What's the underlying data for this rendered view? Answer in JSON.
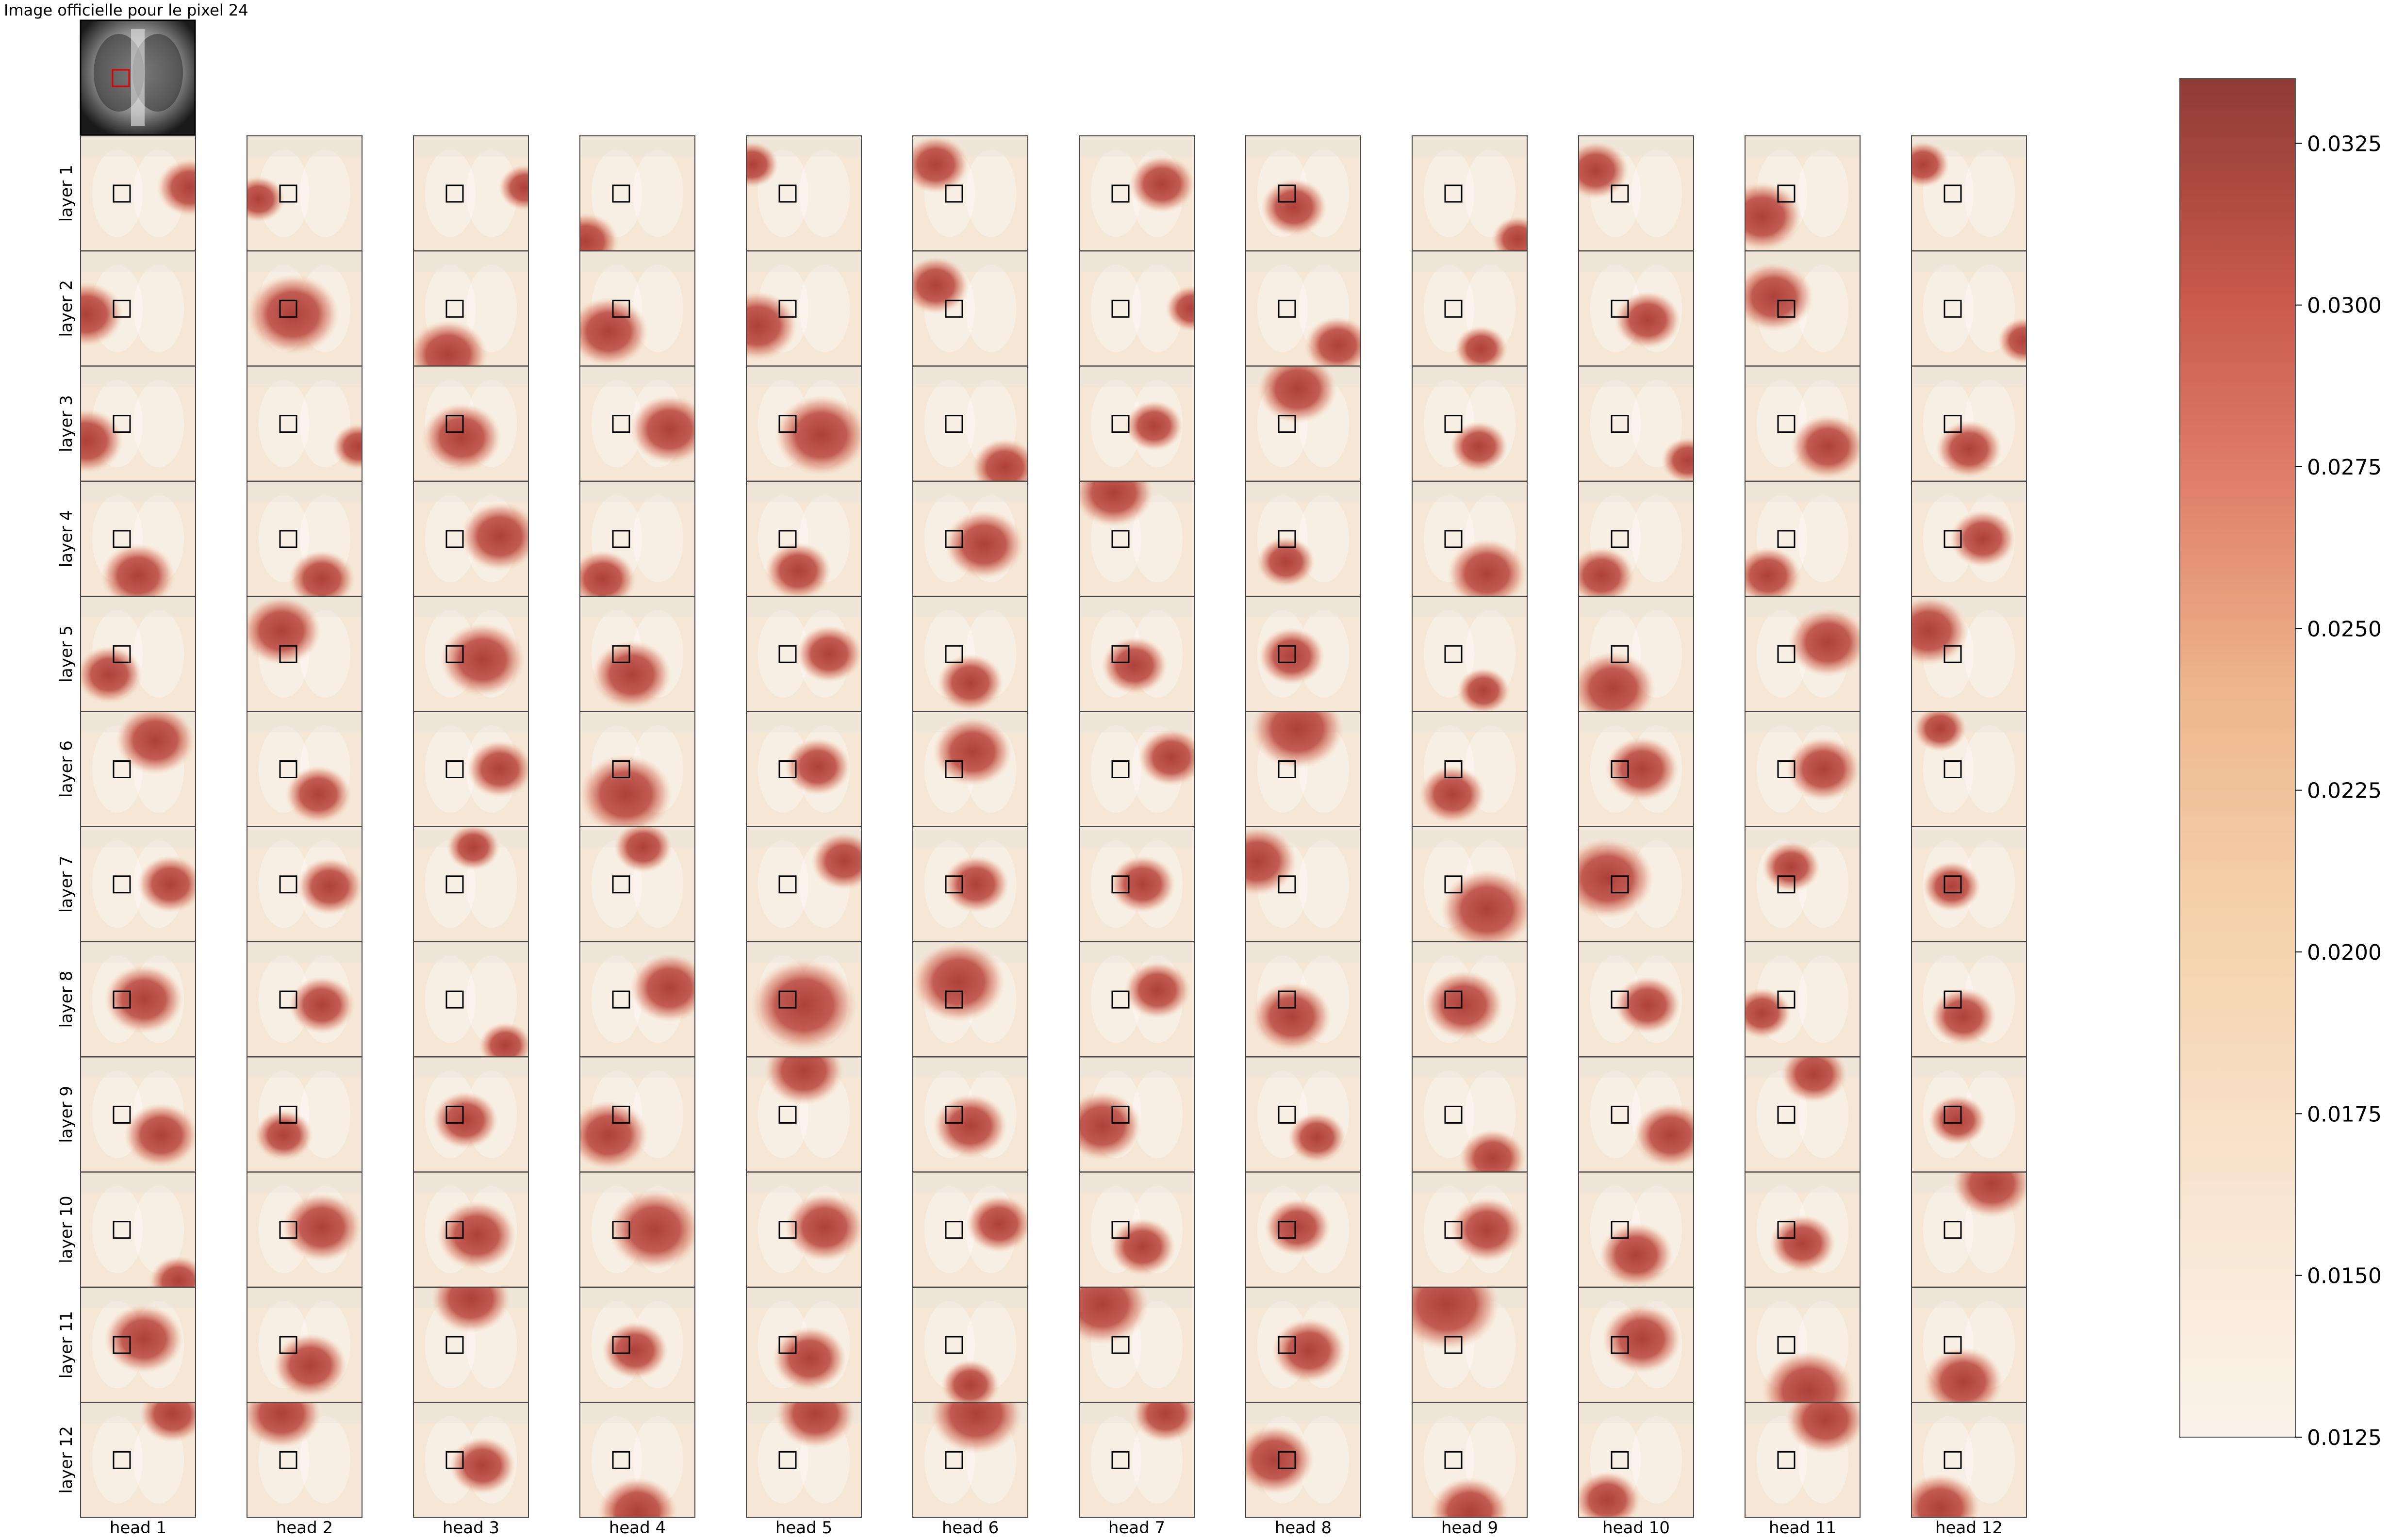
{
  "title": "Image officielle pour le pixel 24",
  "row_labels": [
    "layer 1",
    "layer 2",
    "layer 3",
    "layer 4",
    "layer 5",
    "layer 6",
    "layer 7",
    "layer 8",
    "layer 9",
    "layer 10",
    "layer 11",
    "layer 12"
  ],
  "col_labels": [
    "head 1",
    "head 2",
    "head 3",
    "head 4",
    "head 5",
    "head 6",
    "head 7",
    "head 8",
    "head 9",
    "head 10",
    "head 11",
    "head 12"
  ],
  "colors": {
    "scale": [
      "#fbf2e9",
      "#f6ddc1",
      "#f0c4a0",
      "#e28a70",
      "#c9584a",
      "#a5403a",
      "#8e3a35"
    ],
    "marker_box": "#000000",
    "thumb_marker": "#e00000"
  },
  "chart_data": {
    "type": "heatmap",
    "grid": {
      "rows": 12,
      "cols": 12
    },
    "colorbar": {
      "min": 0.0125,
      "max": 0.0335,
      "ticks": [
        "0.0125",
        "0.0150",
        "0.0175",
        "0.0200",
        "0.0225",
        "0.0250",
        "0.0275",
        "0.0300",
        "0.0325"
      ],
      "placement": "right"
    },
    "hotspots": [
      [
        [
          0.95,
          0.45,
          0.25
        ],
        [
          0.1,
          0.55,
          0.2
        ],
        [
          0.97,
          0.45,
          0.2
        ],
        [
          0.05,
          0.92,
          0.25
        ],
        [
          0.05,
          0.25,
          0.2
        ],
        [
          0.2,
          0.25,
          0.25
        ],
        [
          0.72,
          0.42,
          0.25
        ],
        [
          0.42,
          0.62,
          0.25
        ],
        [
          0.92,
          0.9,
          0.2
        ],
        [
          0.15,
          0.3,
          0.25
        ],
        [
          0.15,
          0.7,
          0.3
        ],
        [
          0.1,
          0.25,
          0.2
        ]
      ],
      [
        [
          0.05,
          0.55,
          0.28
        ],
        [
          0.4,
          0.55,
          0.35
        ],
        [
          0.3,
          0.9,
          0.3
        ],
        [
          0.25,
          0.7,
          0.3
        ],
        [
          0.1,
          0.65,
          0.3
        ],
        [
          0.2,
          0.3,
          0.25
        ],
        [
          0.98,
          0.5,
          0.2
        ],
        [
          0.8,
          0.82,
          0.25
        ],
        [
          0.6,
          0.85,
          0.2
        ],
        [
          0.6,
          0.6,
          0.25
        ],
        [
          0.25,
          0.4,
          0.3
        ],
        [
          0.98,
          0.78,
          0.2
        ]
      ],
      [
        [
          0.05,
          0.65,
          0.28
        ],
        [
          0.97,
          0.7,
          0.2
        ],
        [
          0.42,
          0.62,
          0.3
        ],
        [
          0.78,
          0.55,
          0.3
        ],
        [
          0.65,
          0.6,
          0.35
        ],
        [
          0.8,
          0.88,
          0.25
        ],
        [
          0.65,
          0.52,
          0.22
        ],
        [
          0.45,
          0.2,
          0.3
        ],
        [
          0.58,
          0.7,
          0.22
        ],
        [
          0.95,
          0.82,
          0.2
        ],
        [
          0.72,
          0.7,
          0.28
        ],
        [
          0.5,
          0.72,
          0.25
        ]
      ],
      [
        [
          0.5,
          0.82,
          0.28
        ],
        [
          0.65,
          0.85,
          0.25
        ],
        [
          0.75,
          0.48,
          0.3
        ],
        [
          0.2,
          0.85,
          0.25
        ],
        [
          0.45,
          0.78,
          0.25
        ],
        [
          0.62,
          0.55,
          0.3
        ],
        [
          0.3,
          0.1,
          0.3
        ],
        [
          0.35,
          0.7,
          0.22
        ],
        [
          0.65,
          0.8,
          0.3
        ],
        [
          0.2,
          0.82,
          0.25
        ],
        [
          0.2,
          0.82,
          0.25
        ],
        [
          0.62,
          0.5,
          0.25
        ]
      ],
      [
        [
          0.25,
          0.68,
          0.25
        ],
        [
          0.3,
          0.3,
          0.3
        ],
        [
          0.6,
          0.55,
          0.32
        ],
        [
          0.45,
          0.68,
          0.3
        ],
        [
          0.72,
          0.5,
          0.25
        ],
        [
          0.5,
          0.75,
          0.25
        ],
        [
          0.48,
          0.6,
          0.25
        ],
        [
          0.4,
          0.52,
          0.25
        ],
        [
          0.62,
          0.82,
          0.2
        ],
        [
          0.3,
          0.8,
          0.32
        ],
        [
          0.72,
          0.4,
          0.3
        ],
        [
          0.15,
          0.3,
          0.3
        ]
      ],
      [
        [
          0.65,
          0.25,
          0.3
        ],
        [
          0.62,
          0.72,
          0.25
        ],
        [
          0.75,
          0.5,
          0.25
        ],
        [
          0.4,
          0.72,
          0.35
        ],
        [
          0.62,
          0.48,
          0.25
        ],
        [
          0.52,
          0.35,
          0.3
        ],
        [
          0.8,
          0.4,
          0.25
        ],
        [
          0.45,
          0.15,
          0.35
        ],
        [
          0.35,
          0.72,
          0.25
        ],
        [
          0.55,
          0.5,
          0.28
        ],
        [
          0.68,
          0.5,
          0.28
        ],
        [
          0.25,
          0.15,
          0.2
        ]
      ],
      [
        [
          0.78,
          0.5,
          0.25
        ],
        [
          0.72,
          0.52,
          0.25
        ],
        [
          0.52,
          0.18,
          0.2
        ],
        [
          0.55,
          0.18,
          0.22
        ],
        [
          0.85,
          0.3,
          0.25
        ],
        [
          0.55,
          0.5,
          0.25
        ],
        [
          0.55,
          0.5,
          0.25
        ],
        [
          0.1,
          0.3,
          0.3
        ],
        [
          0.65,
          0.72,
          0.35
        ],
        [
          0.25,
          0.45,
          0.35
        ],
        [
          0.4,
          0.35,
          0.22
        ],
        [
          0.35,
          0.52,
          0.22
        ]
      ],
      [
        [
          0.55,
          0.5,
          0.3
        ],
        [
          0.65,
          0.55,
          0.25
        ],
        [
          0.8,
          0.9,
          0.2
        ],
        [
          0.78,
          0.4,
          0.3
        ],
        [
          0.5,
          0.55,
          0.4
        ],
        [
          0.4,
          0.35,
          0.35
        ],
        [
          0.68,
          0.42,
          0.25
        ],
        [
          0.4,
          0.65,
          0.3
        ],
        [
          0.45,
          0.55,
          0.3
        ],
        [
          0.6,
          0.55,
          0.25
        ],
        [
          0.15,
          0.62,
          0.22
        ],
        [
          0.45,
          0.65,
          0.25
        ]
      ],
      [
        [
          0.7,
          0.68,
          0.28
        ],
        [
          0.32,
          0.68,
          0.22
        ],
        [
          0.45,
          0.55,
          0.25
        ],
        [
          0.25,
          0.68,
          0.3
        ],
        [
          0.5,
          0.12,
          0.3
        ],
        [
          0.5,
          0.6,
          0.28
        ],
        [
          0.2,
          0.6,
          0.3
        ],
        [
          0.62,
          0.7,
          0.22
        ],
        [
          0.7,
          0.88,
          0.25
        ],
        [
          0.8,
          0.68,
          0.28
        ],
        [
          0.6,
          0.15,
          0.25
        ],
        [
          0.4,
          0.55,
          0.22
        ]
      ],
      [
        [
          0.85,
          0.95,
          0.22
        ],
        [
          0.65,
          0.48,
          0.3
        ],
        [
          0.55,
          0.55,
          0.3
        ],
        [
          0.65,
          0.5,
          0.35
        ],
        [
          0.68,
          0.48,
          0.3
        ],
        [
          0.75,
          0.45,
          0.25
        ],
        [
          0.55,
          0.65,
          0.25
        ],
        [
          0.45,
          0.48,
          0.25
        ],
        [
          0.65,
          0.5,
          0.28
        ],
        [
          0.5,
          0.72,
          0.28
        ],
        [
          0.5,
          0.62,
          0.25
        ],
        [
          0.7,
          0.1,
          0.3
        ]
      ],
      [
        [
          0.55,
          0.45,
          0.3
        ],
        [
          0.55,
          0.68,
          0.28
        ],
        [
          0.5,
          0.1,
          0.3
        ],
        [
          0.48,
          0.55,
          0.25
        ],
        [
          0.55,
          0.62,
          0.28
        ],
        [
          0.5,
          0.85,
          0.22
        ],
        [
          0.2,
          0.15,
          0.35
        ],
        [
          0.55,
          0.55,
          0.28
        ],
        [
          0.3,
          0.15,
          0.4
        ],
        [
          0.55,
          0.45,
          0.3
        ],
        [
          0.55,
          0.9,
          0.35
        ],
        [
          0.45,
          0.82,
          0.3
        ]
      ],
      [
        [
          0.8,
          0.1,
          0.25
        ],
        [
          0.3,
          0.1,
          0.3
        ],
        [
          0.6,
          0.55,
          0.25
        ],
        [
          0.5,
          0.95,
          0.3
        ],
        [
          0.6,
          0.1,
          0.3
        ],
        [
          0.55,
          0.1,
          0.35
        ],
        [
          0.75,
          0.1,
          0.25
        ],
        [
          0.25,
          0.5,
          0.3
        ],
        [
          0.5,
          0.95,
          0.3
        ],
        [
          0.25,
          0.85,
          0.25
        ],
        [
          0.7,
          0.15,
          0.3
        ],
        [
          0.25,
          0.92,
          0.3
        ]
      ]
    ]
  }
}
